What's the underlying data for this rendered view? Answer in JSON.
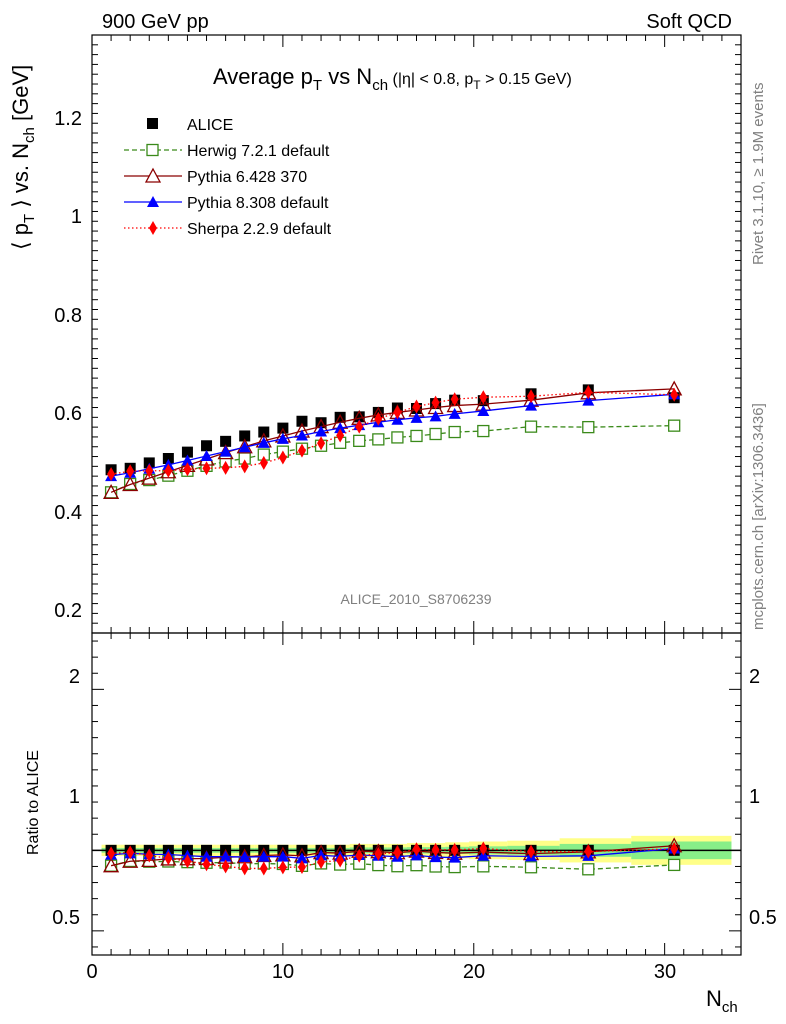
{
  "header": {
    "left": "900 GeV pp",
    "right": "Soft QCD"
  },
  "side": {
    "rivet": "Rivet 3.1.10, ≥ 1.9M events",
    "mcplots": "mcplots.cern.ch [arXiv:1306.3436]"
  },
  "colors": {
    "alice": "#000000",
    "herwig": "#3a8a1a",
    "pythia6": "#8b0000",
    "pythia8": "#0000ff",
    "sherpa": "#ff0000",
    "band_yellow": "#ffff88",
    "band_green": "#88ee88"
  },
  "chart_data": {
    "type": "line",
    "title_main": "Average p",
    "title_sub_t": "T",
    "title_vs": " vs N",
    "title_sub_ch": "ch",
    "title_cut": " (|η| < 0.8, p",
    "title_cut_t": "T",
    "title_cut_end": " > 0.15 GeV)",
    "ylabel_top": "⟨ p",
    "ylabel_top_t": "T",
    "ylabel_top_mid": " ⟩ vs. N",
    "ylabel_top_ch": "ch",
    "ylabel_top_unit": " [GeV]",
    "ylabel_bottom": "Ratio to ALICE",
    "xlabel": "N",
    "xlabel_sub": "ch",
    "analysis": "ALICE_2010_S8706239",
    "xlim": [
      0,
      34
    ],
    "ylim_top": [
      0.15,
      1.37
    ],
    "ylim_bottom": [
      0.35,
      2.35
    ],
    "x_ticks": [
      "0",
      "10",
      "20",
      "30"
    ],
    "y_ticks_top": [
      "0.2",
      "0.4",
      "0.6",
      "0.8",
      "1",
      "1.2"
    ],
    "y_ticks_bottom": [
      "0.5",
      "1",
      "2"
    ],
    "legend": [
      "ALICE",
      "Herwig 7.2.1 default",
      "Pythia 6.428 370",
      "Pythia 8.308 default",
      "Sherpa 2.2.9 default"
    ],
    "x": [
      1,
      2,
      3,
      4,
      5,
      6,
      7,
      8,
      9,
      10,
      11,
      12,
      13,
      14,
      15,
      16,
      17,
      18,
      19,
      20.5,
      23,
      26,
      30.5
    ],
    "series": [
      {
        "name": "ALICE",
        "values": [
          0.483,
          0.486,
          0.497,
          0.506,
          0.519,
          0.532,
          0.541,
          0.552,
          0.56,
          0.568,
          0.582,
          0.579,
          0.59,
          0.591,
          0.6,
          0.609,
          0.608,
          0.618,
          0.625,
          0.624,
          0.638,
          0.646,
          0.63
        ]
      },
      {
        "name": "Herwig 7.2.1 default",
        "values": [
          0.437,
          0.454,
          0.462,
          0.471,
          0.481,
          0.491,
          0.5,
          0.506,
          0.514,
          0.52,
          0.526,
          0.532,
          0.538,
          0.542,
          0.545,
          0.549,
          0.552,
          0.556,
          0.56,
          0.562,
          0.571,
          0.57,
          0.573
        ]
      },
      {
        "name": "Pythia 6.428 370",
        "values": [
          0.437,
          0.453,
          0.466,
          0.479,
          0.492,
          0.505,
          0.518,
          0.53,
          0.542,
          0.552,
          0.562,
          0.571,
          0.58,
          0.588,
          0.595,
          0.6,
          0.605,
          0.61,
          0.614,
          0.617,
          0.625,
          0.64,
          0.648
        ]
      },
      {
        "name": "Pythia 8.308 default",
        "values": [
          0.47,
          0.477,
          0.485,
          0.493,
          0.502,
          0.511,
          0.52,
          0.529,
          0.538,
          0.546,
          0.553,
          0.561,
          0.568,
          0.574,
          0.58,
          0.585,
          0.589,
          0.592,
          0.597,
          0.603,
          0.614,
          0.624,
          0.637
        ]
      },
      {
        "name": "Sherpa 2.2.9 default",
        "values": [
          0.474,
          0.48,
          0.481,
          0.481,
          0.484,
          0.486,
          0.487,
          0.49,
          0.497,
          0.508,
          0.522,
          0.537,
          0.553,
          0.571,
          0.587,
          0.6,
          0.612,
          0.62,
          0.627,
          0.631,
          0.633,
          0.641,
          0.636
        ]
      }
    ]
  }
}
